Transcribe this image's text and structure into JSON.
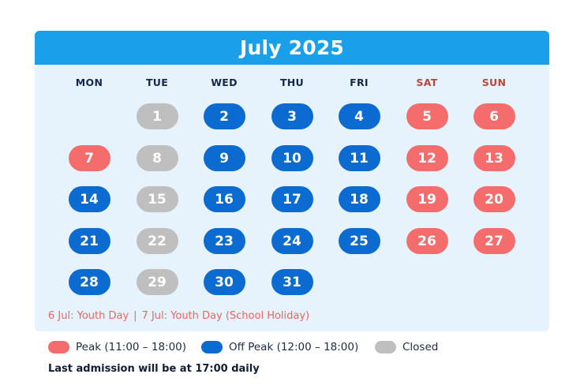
{
  "title": "July 2025",
  "weekdays": [
    "MON",
    "TUE",
    "WED",
    "THU",
    "FRI",
    "SAT",
    "SUN"
  ],
  "colors": {
    "header": "#1aa0ea",
    "peak": "#f56c6c",
    "off_peak": "#0b6bd0",
    "closed": "#bfbfbf",
    "weekend_label": "#b9483c",
    "card_bg": "#e6f3fc"
  },
  "days": [
    {
      "day": "1",
      "status": "closed"
    },
    {
      "day": "2",
      "status": "offpeak"
    },
    {
      "day": "3",
      "status": "offpeak"
    },
    {
      "day": "4",
      "status": "offpeak"
    },
    {
      "day": "5",
      "status": "peak"
    },
    {
      "day": "6",
      "status": "peak"
    },
    {
      "day": "7",
      "status": "peak"
    },
    {
      "day": "8",
      "status": "closed"
    },
    {
      "day": "9",
      "status": "offpeak"
    },
    {
      "day": "10",
      "status": "offpeak"
    },
    {
      "day": "11",
      "status": "offpeak"
    },
    {
      "day": "12",
      "status": "peak"
    },
    {
      "day": "13",
      "status": "peak"
    },
    {
      "day": "14",
      "status": "offpeak"
    },
    {
      "day": "15",
      "status": "closed"
    },
    {
      "day": "16",
      "status": "offpeak"
    },
    {
      "day": "17",
      "status": "offpeak"
    },
    {
      "day": "18",
      "status": "offpeak"
    },
    {
      "day": "19",
      "status": "peak"
    },
    {
      "day": "20",
      "status": "peak"
    },
    {
      "day": "21",
      "status": "offpeak"
    },
    {
      "day": "22",
      "status": "closed"
    },
    {
      "day": "23",
      "status": "offpeak"
    },
    {
      "day": "24",
      "status": "offpeak"
    },
    {
      "day": "25",
      "status": "offpeak"
    },
    {
      "day": "26",
      "status": "peak"
    },
    {
      "day": "27",
      "status": "peak"
    },
    {
      "day": "28",
      "status": "offpeak"
    },
    {
      "day": "29",
      "status": "closed"
    },
    {
      "day": "30",
      "status": "offpeak"
    },
    {
      "day": "31",
      "status": "offpeak"
    }
  ],
  "holidays": {
    "first": "6 Jul: Youth Day",
    "separator": "|",
    "second": "7 Jul: Youth Day (School Holiday)"
  },
  "legend": {
    "peak": "Peak (11:00 – 18:00)",
    "off_peak": "Off Peak (12:00 – 18:00)",
    "closed": "Closed"
  },
  "footer": "Last admission will be at 17:00 daily"
}
